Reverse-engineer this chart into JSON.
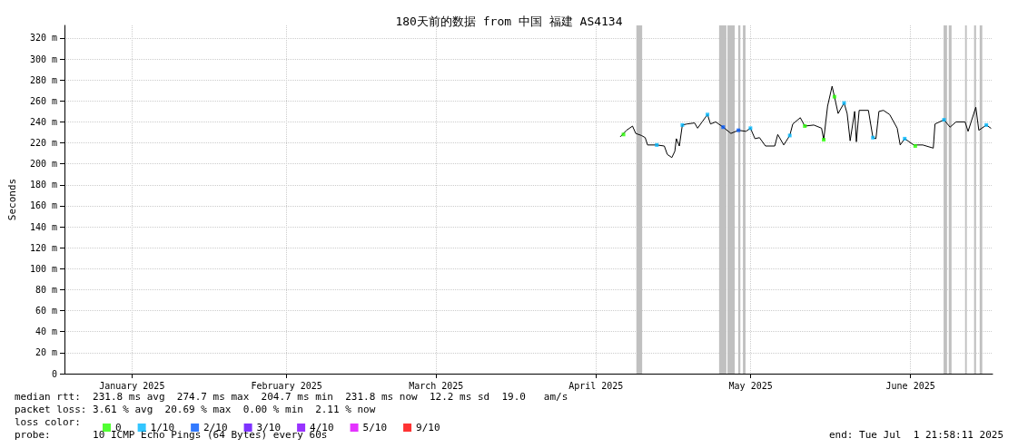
{
  "chart_data": {
    "type": "line",
    "title": "180天前的数据 from 中国 福建 AS4134",
    "ylabel": "Seconds",
    "xlim": [
      "2025-01-02T21:58",
      "2025-07-01T21:58"
    ],
    "xticks": [
      {
        "value": "2025-01-16",
        "label": "January 2025"
      },
      {
        "value": "2025-02-15",
        "label": "February 2025"
      },
      {
        "value": "2025-03-16",
        "label": "March 2025"
      },
      {
        "value": "2025-04-16",
        "label": "April 2025"
      },
      {
        "value": "2025-05-16",
        "label": "May 2025"
      },
      {
        "value": "2025-06-16",
        "label": "June 2025"
      }
    ],
    "ylim": [
      0,
      332
    ],
    "yticks": [
      0,
      {
        "value": 20,
        "label": "20 m"
      },
      {
        "value": 40,
        "label": "40 m"
      },
      {
        "value": 60,
        "label": "60 m"
      },
      {
        "value": 80,
        "label": "80 m"
      },
      {
        "value": 100,
        "label": "100 m"
      },
      {
        "value": 120,
        "label": "120 m"
      },
      {
        "value": 140,
        "label": "140 m"
      },
      {
        "value": 160,
        "label": "160 m"
      },
      {
        "value": 180,
        "label": "180 m"
      },
      {
        "value": 200,
        "label": "200 m"
      },
      {
        "value": 220,
        "label": "220 m"
      },
      {
        "value": 240,
        "label": "240 m"
      },
      {
        "value": 260,
        "label": "260 m"
      },
      {
        "value": 280,
        "label": "280 m"
      },
      {
        "value": 300,
        "label": "300 m"
      },
      {
        "value": 320,
        "label": "320 m"
      }
    ],
    "grid": true,
    "legend": "bottom left",
    "series": [
      {
        "color": "#000000",
        "x": [
          "2025-04-20T18:00",
          "2025-04-21T22:00",
          "2025-04-23T02:00",
          "2025-04-23T17:00",
          "2025-04-24T20:00",
          "2025-04-25T13:00",
          "2025-04-26T00:00",
          "2025-04-27T19:00",
          "2025-04-29T06:00",
          "2025-04-29T20:00",
          "2025-04-30T17:00",
          "2025-05-01T07:00",
          "2025-05-01T14:00",
          "2025-05-02T04:00",
          "2025-05-02T18:00",
          "2025-05-03T15:00",
          "2025-05-05T03:00",
          "2025-05-05T17:00",
          "2025-05-06T14:00",
          "2025-05-07T15:00",
          "2025-05-08T05:00",
          "2025-05-09T05:00",
          "2025-05-10T16:00",
          "2025-05-12T04:00",
          "2025-05-13T15:00",
          "2025-05-15T02:00",
          "2025-05-15T23:00",
          "2025-05-16T20:00",
          "2025-05-17T17:00",
          "2025-05-18T21:00",
          "2025-05-20T16:00",
          "2025-05-21T06:00",
          "2025-05-22T10:00",
          "2025-05-23T14:00",
          "2025-05-24T04:00",
          "2025-05-25T15:00",
          "2025-05-26T12:00",
          "2025-05-28T06:00",
          "2025-05-29T18:00",
          "2025-05-30T04:00",
          "2025-05-30T22:00",
          "2025-05-31T19:00",
          "2025-06-01T06:00",
          "2025-06-01T23:00",
          "2025-06-03T03:00",
          "2025-06-03T17:00",
          "2025-06-04T07:00",
          "2025-06-05T04:00",
          "2025-06-05T12:00",
          "2025-06-06T01:00",
          "2025-06-07T20:00",
          "2025-06-08T17:00",
          "2025-06-09T07:00",
          "2025-06-09T21:00",
          "2025-06-10T18:00",
          "2025-06-11T23:00",
          "2025-06-13T10:00",
          "2025-06-14T00:00",
          "2025-06-14T21:00",
          "2025-06-16T15:00",
          "2025-06-18T09:00",
          "2025-06-20T10:00",
          "2025-06-20T18:00",
          "2025-06-22T12:00",
          "2025-06-23T16:00",
          "2025-06-24T20:00",
          "2025-06-26T14:00",
          "2025-06-27T04:00",
          "2025-06-28T16:00",
          "2025-06-29T06:00",
          "2025-06-30T17:00",
          "2025-07-01T14:00"
        ],
        "values": [
          226,
          232,
          236,
          229,
          227,
          225,
          218,
          218,
          217,
          209,
          206,
          212,
          224,
          217,
          237,
          238,
          239,
          234,
          240,
          247,
          238,
          240,
          235,
          229,
          232,
          231,
          234,
          224,
          225,
          217,
          217,
          228,
          218,
          227,
          238,
          244,
          236,
          237,
          234,
          223,
          255,
          274,
          264,
          248,
          258,
          248,
          222,
          250,
          221,
          251,
          251,
          225,
          224,
          250,
          251,
          247,
          234,
          218,
          224,
          218,
          218,
          215,
          238,
          242,
          235,
          240,
          240,
          231,
          254,
          232,
          237,
          234
        ]
      },
      {
        "type": "scatter",
        "name": "0",
        "color": "#26ff00",
        "x": [
          "2025-04-21T08:00",
          "2025-05-26T12:00",
          "2025-05-30T04:00",
          "2025-06-01T06:00",
          "2025-06-16T22:00"
        ],
        "values": [
          228,
          236,
          223,
          264,
          217
        ]
      },
      {
        "type": "scatter",
        "name": "1/10",
        "color": "#00b8ff",
        "x": [
          "2025-04-27T19:00",
          "2025-05-02T18:00",
          "2025-05-07T15:00",
          "2025-05-15T23:00",
          "2025-05-23T14:00",
          "2025-06-03T03:00",
          "2025-06-08T17:00",
          "2025-06-14T21:00",
          "2025-06-22T12:00",
          "2025-06-30T17:00"
        ],
        "values": [
          218,
          237,
          247,
          234,
          227,
          258,
          225,
          224,
          242,
          237
        ]
      },
      {
        "type": "scatter",
        "name": "2/10",
        "color": "#0059ff",
        "x": [
          "2025-05-10T16:00",
          "2025-05-13T15:00"
        ],
        "values": [
          235,
          232
        ]
      },
      {
        "type": "scatter",
        "name": "3/10",
        "color": "#5e00ff"
      },
      {
        "type": "scatter",
        "name": "4/10",
        "color": "#7e00ff"
      },
      {
        "type": "scatter",
        "name": "5/10",
        "color": "#dd00ff"
      },
      {
        "type": "scatter",
        "name": "9/10",
        "color": "#ff0000"
      }
    ],
    "bands": [
      {
        "axis": "x",
        "from": "2025-04-23T20:00",
        "to": "2025-04-24T23:00",
        "color": "#c0c0c0"
      },
      {
        "axis": "x",
        "from": "2025-05-09T21:00",
        "to": "2025-05-11T07:00",
        "color": "#c0c0c0"
      },
      {
        "axis": "x",
        "from": "2025-05-11T12:00",
        "to": "2025-05-12T22:00",
        "color": "#c0c0c0"
      },
      {
        "axis": "x",
        "from": "2025-05-13T14:00",
        "to": "2025-05-14T00:00",
        "color": "#c0c0c0"
      },
      {
        "axis": "x",
        "from": "2025-05-14T12:00",
        "to": "2025-05-15T00:00",
        "color": "#c0c0c0"
      },
      {
        "axis": "x",
        "from": "2025-06-22T10:00",
        "to": "2025-06-23T02:00",
        "color": "#c0c0c0"
      },
      {
        "axis": "x",
        "from": "2025-06-23T10:00",
        "to": "2025-06-23T23:00",
        "color": "#c0c0c0"
      },
      {
        "axis": "x",
        "from": "2025-06-26T14:00",
        "to": "2025-06-26T22:00",
        "color": "#c0c0c0"
      },
      {
        "axis": "x",
        "from": "2025-06-28T08:00",
        "to": "2025-06-28T17:00",
        "color": "#c0c0c0"
      },
      {
        "axis": "x",
        "from": "2025-06-29T10:00",
        "to": "2025-06-29T22:00",
        "color": "#c0c0c0"
      }
    ],
    "annotations": [
      "median rtt:  231.8 ms avg  274.7 ms max  204.7 ms min  231.8 ms now  12.2 ms sd  19.0   am/s",
      "packet loss: 3.61 % avg  20.69 % max  0.00 % min  2.11 % now",
      "loss color:",
      "probe:       10 ICMP Echo Pings (64 Bytes) every 60s",
      "end: Tue Jul  1 21:58:11 2025"
    ]
  }
}
